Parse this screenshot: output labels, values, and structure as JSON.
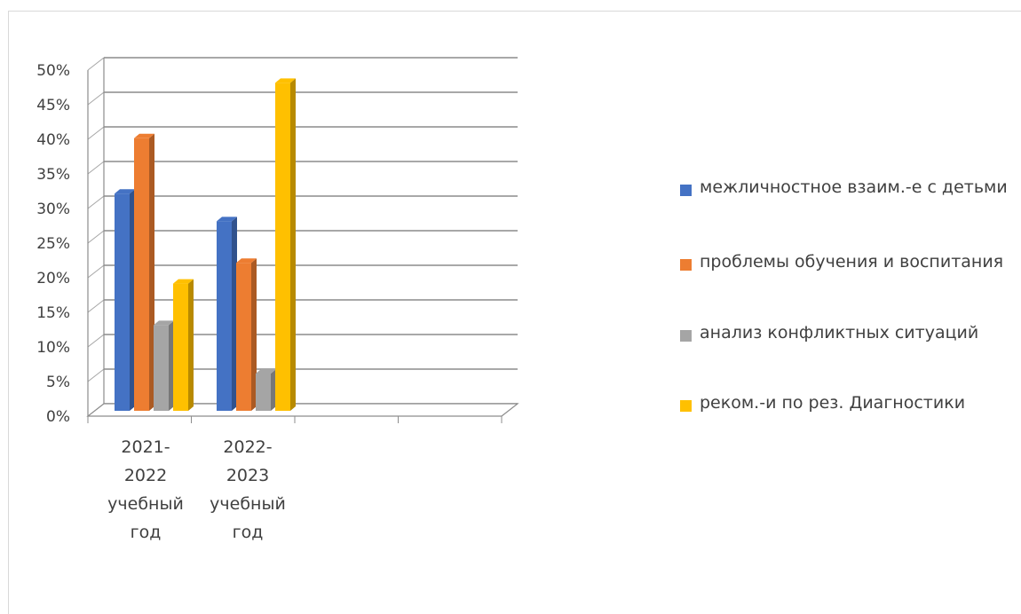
{
  "chart_data": {
    "type": "bar",
    "categories": [
      [
        "2021-",
        "2022",
        "учебный",
        "год"
      ],
      [
        "2022-",
        "2023",
        "учебный",
        "год"
      ]
    ],
    "series": [
      {
        "name": "межличностное взаим.-е с детьми",
        "values": [
          31,
          27
        ],
        "color": "#4472c4"
      },
      {
        "name": "проблемы обучения и воспитания",
        "values": [
          39,
          21
        ],
        "color": "#ed7d31"
      },
      {
        "name": "анализ конфликтных ситуаций",
        "values": [
          12,
          5
        ],
        "color": "#a5a5a5"
      },
      {
        "name": "реком.-и по рез. Диагностики",
        "values": [
          18,
          47
        ],
        "color": "#ffc000"
      }
    ],
    "ylim": [
      0,
      50
    ],
    "yticks": [
      "0%",
      "5%",
      "10%",
      "15%",
      "20%",
      "25%",
      "30%",
      "35%",
      "40%",
      "45%",
      "50%"
    ],
    "grid": true,
    "legend_position": "right"
  }
}
